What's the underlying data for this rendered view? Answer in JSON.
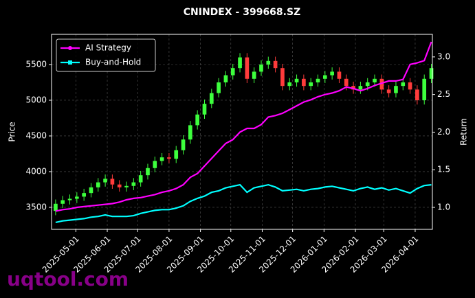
{
  "chart_data": {
    "type": "candlestick",
    "title": "CNINDEX - 399668.SZ",
    "ylabel": "Price",
    "y2label": "Return",
    "watermark": "uqtool.com",
    "x": [
      "2025-04-11",
      "2025-04-18",
      "2025-04-25",
      "2025-05-02",
      "2025-05-09",
      "2025-05-16",
      "2025-05-23",
      "2025-05-30",
      "2025-06-06",
      "2025-06-13",
      "2025-06-20",
      "2025-06-27",
      "2025-07-04",
      "2025-07-11",
      "2025-07-18",
      "2025-07-25",
      "2025-08-01",
      "2025-08-08",
      "2025-08-15",
      "2025-08-22",
      "2025-08-29",
      "2025-09-05",
      "2025-09-12",
      "2025-09-19",
      "2025-09-26",
      "2025-10-03",
      "2025-10-10",
      "2025-10-17",
      "2025-10-24",
      "2025-10-31",
      "2025-11-07",
      "2025-11-14",
      "2025-11-21",
      "2025-11-28",
      "2025-12-05",
      "2025-12-12",
      "2025-12-19",
      "2025-12-26",
      "2026-01-02",
      "2026-01-09",
      "2026-01-16",
      "2026-01-23",
      "2026-01-30",
      "2026-02-06",
      "2026-02-13",
      "2026-02-20",
      "2026-02-27",
      "2026-03-06",
      "2026-03-13",
      "2026-03-20",
      "2026-03-27",
      "2026-04-03",
      "2026-04-10",
      "2026-04-17"
    ],
    "open": [
      3450,
      3550,
      3600,
      3620,
      3650,
      3700,
      3780,
      3850,
      3900,
      3820,
      3780,
      3800,
      3850,
      3950,
      4050,
      4150,
      4200,
      4180,
      4300,
      4450,
      4650,
      4800,
      4950,
      5100,
      5250,
      5350,
      5450,
      5600,
      5300,
      5400,
      5500,
      5550,
      5450,
      5200,
      5250,
      5300,
      5200,
      5250,
      5300,
      5350,
      5400,
      5300,
      5200,
      5150,
      5200,
      5250,
      5300,
      5150,
      5100,
      5200,
      5250,
      5150,
      5000,
      5300
    ],
    "high": [
      3610,
      3660,
      3680,
      3710,
      3760,
      3840,
      3910,
      3960,
      3960,
      3880,
      3860,
      3910,
      4010,
      4110,
      4210,
      4260,
      4260,
      4360,
      4510,
      4710,
      4860,
      5010,
      5160,
      5310,
      5410,
      5510,
      5660,
      5660,
      5460,
      5560,
      5610,
      5610,
      5510,
      5310,
      5360,
      5360,
      5310,
      5360,
      5410,
      5460,
      5460,
      5360,
      5260,
      5260,
      5310,
      5360,
      5360,
      5210,
      5260,
      5310,
      5310,
      5210,
      5360,
      5510
    ],
    "low": [
      3390,
      3490,
      3540,
      3560,
      3590,
      3640,
      3720,
      3790,
      3760,
      3720,
      3720,
      3740,
      3790,
      3890,
      3990,
      4090,
      4120,
      4120,
      4240,
      4390,
      4590,
      4740,
      4890,
      5040,
      5190,
      5290,
      5390,
      5240,
      5240,
      5340,
      5440,
      5390,
      5140,
      5140,
      5190,
      5140,
      5140,
      5190,
      5240,
      5290,
      5240,
      5140,
      5090,
      5090,
      5140,
      5190,
      5090,
      5040,
      5040,
      5140,
      5090,
      4940,
      4940,
      5240
    ],
    "close": [
      3550,
      3600,
      3620,
      3650,
      3700,
      3780,
      3850,
      3900,
      3820,
      3780,
      3800,
      3850,
      3950,
      4050,
      4150,
      4200,
      4180,
      4300,
      4450,
      4650,
      4800,
      4950,
      5100,
      5250,
      5350,
      5450,
      5600,
      5300,
      5400,
      5500,
      5550,
      5450,
      5200,
      5250,
      5300,
      5200,
      5250,
      5300,
      5350,
      5400,
      5300,
      5200,
      5150,
      5200,
      5250,
      5300,
      5150,
      5100,
      5200,
      5250,
      5150,
      5000,
      5300,
      5450
    ],
    "up_color": "#3dff3d",
    "down_color": "#ff3b3b",
    "series": [
      {
        "name": "AI Strategy",
        "color": "#ff00ff",
        "marker": "circle",
        "axis": "y2",
        "values": [
          0.95,
          0.97,
          0.98,
          1.0,
          1.01,
          1.02,
          1.03,
          1.04,
          1.05,
          1.07,
          1.1,
          1.12,
          1.13,
          1.15,
          1.17,
          1.2,
          1.22,
          1.25,
          1.3,
          1.4,
          1.45,
          1.55,
          1.65,
          1.75,
          1.85,
          1.9,
          2.0,
          2.05,
          2.05,
          2.1,
          2.2,
          2.22,
          2.25,
          2.3,
          2.35,
          2.4,
          2.43,
          2.47,
          2.5,
          2.52,
          2.55,
          2.6,
          2.58,
          2.55,
          2.58,
          2.62,
          2.65,
          2.68,
          2.68,
          2.7,
          2.9,
          2.92,
          2.95,
          3.2
        ]
      },
      {
        "name": "Buy-and-Hold",
        "color": "#00ffff",
        "marker": "square",
        "axis": "y2",
        "values": [
          0.8,
          0.82,
          0.83,
          0.84,
          0.85,
          0.87,
          0.88,
          0.9,
          0.88,
          0.88,
          0.88,
          0.89,
          0.92,
          0.94,
          0.96,
          0.97,
          0.97,
          0.99,
          1.02,
          1.08,
          1.12,
          1.15,
          1.2,
          1.22,
          1.26,
          1.28,
          1.3,
          1.2,
          1.26,
          1.28,
          1.3,
          1.27,
          1.22,
          1.23,
          1.24,
          1.22,
          1.24,
          1.25,
          1.27,
          1.28,
          1.26,
          1.24,
          1.22,
          1.25,
          1.27,
          1.24,
          1.26,
          1.23,
          1.25,
          1.22,
          1.19,
          1.25,
          1.29,
          1.3
        ]
      }
    ],
    "xlim": [
      "2025-04-07",
      "2026-04-18"
    ],
    "xticks": [
      "2025-05-01",
      "2025-06-01",
      "2025-07-01",
      "2025-08-01",
      "2025-09-01",
      "2025-10-01",
      "2025-11-01",
      "2025-12-01",
      "2026-01-01",
      "2026-02-01",
      "2026-03-01",
      "2026-04-01"
    ],
    "ylim": [
      3192,
      5923
    ],
    "yticks": [
      3500,
      4000,
      4500,
      5000,
      5500
    ],
    "y2lim": [
      0.708,
      3.3
    ],
    "y2ticks": [
      {
        "value": 1,
        "label": "1.0"
      },
      1.5,
      {
        "value": 2,
        "label": "2.0"
      },
      2.5,
      {
        "value": 3,
        "label": "3.0"
      }
    ],
    "grid": true,
    "legend": "upper left"
  }
}
